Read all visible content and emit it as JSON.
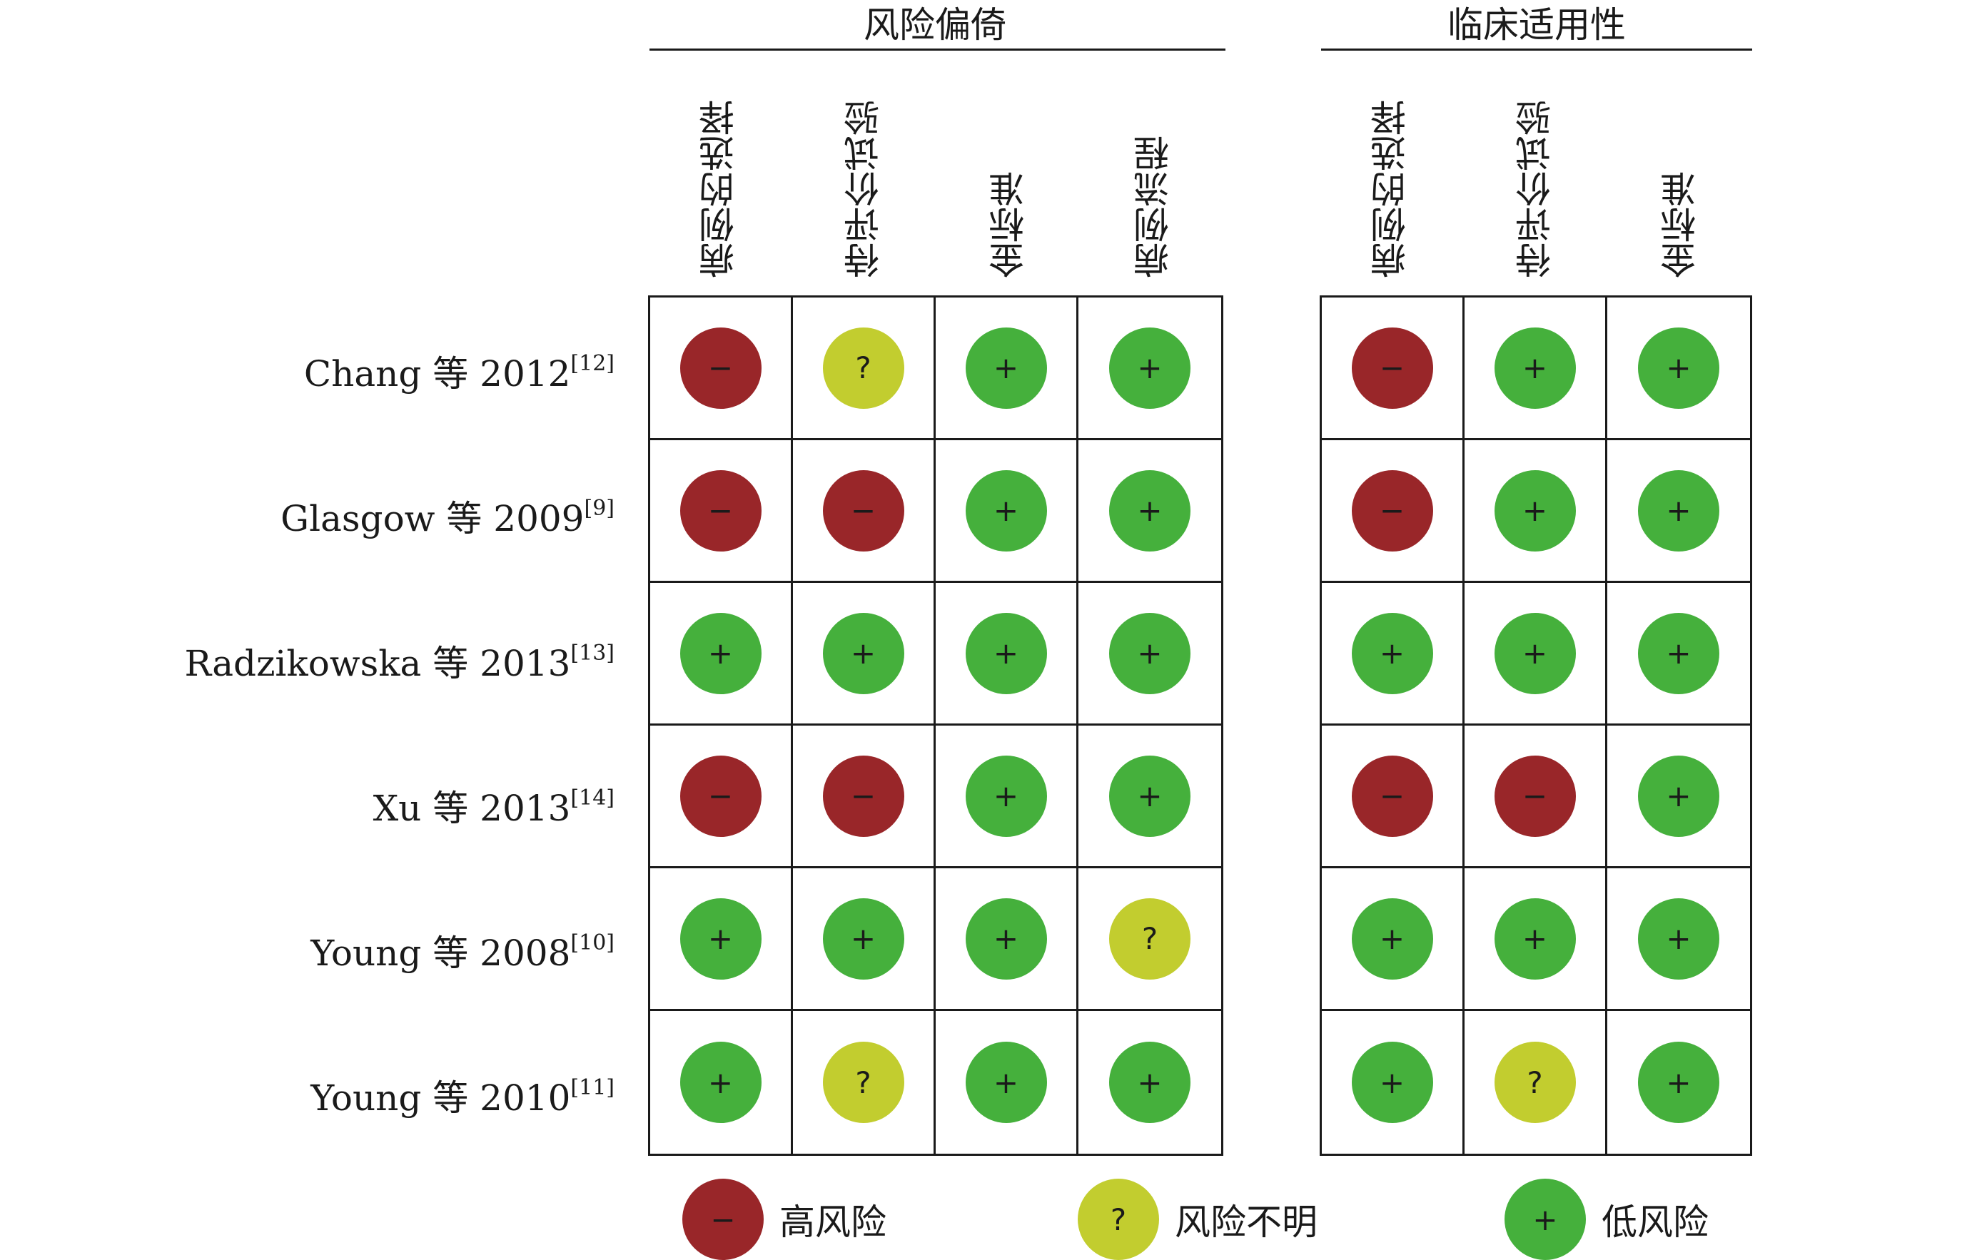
{
  "symbols": {
    "high": "−",
    "unclear": "?",
    "low": "+"
  },
  "colors": {
    "high": "#992629",
    "unclear": "#c2cd2f",
    "low": "#45b03c"
  },
  "groups": [
    {
      "title": "风险偏倚",
      "columns": [
        "病例的选择",
        "待评价试验",
        "金标准",
        "病例流程"
      ]
    },
    {
      "title": "临床适用性",
      "columns": [
        "病例的选择",
        "待评价试验",
        "金标准"
      ]
    }
  ],
  "studies": [
    {
      "label": "Chang 等 2012",
      "ref": "[12]",
      "bias": [
        "high",
        "unclear",
        "low",
        "low"
      ],
      "applicability": [
        "high",
        "low",
        "low"
      ]
    },
    {
      "label": "Glasgow 等 2009",
      "ref": "[9]",
      "bias": [
        "high",
        "high",
        "low",
        "low"
      ],
      "applicability": [
        "high",
        "low",
        "low"
      ]
    },
    {
      "label": "Radzikowska 等 2013",
      "ref": "[13]",
      "bias": [
        "low",
        "low",
        "low",
        "low"
      ],
      "applicability": [
        "low",
        "low",
        "low"
      ]
    },
    {
      "label": "Xu 等 2013",
      "ref": "[14]",
      "bias": [
        "high",
        "high",
        "low",
        "low"
      ],
      "applicability": [
        "high",
        "high",
        "low"
      ]
    },
    {
      "label": "Young 等 2008",
      "ref": "[10]",
      "bias": [
        "low",
        "low",
        "low",
        "unclear"
      ],
      "applicability": [
        "low",
        "low",
        "low"
      ]
    },
    {
      "label": "Young 等 2010",
      "ref": "[11]",
      "bias": [
        "low",
        "unclear",
        "low",
        "low"
      ],
      "applicability": [
        "low",
        "unclear",
        "low"
      ]
    }
  ],
  "legend": [
    {
      "key": "high",
      "label": "高风险"
    },
    {
      "key": "unclear",
      "label": "风险不明"
    },
    {
      "key": "low",
      "label": "低风险"
    }
  ]
}
